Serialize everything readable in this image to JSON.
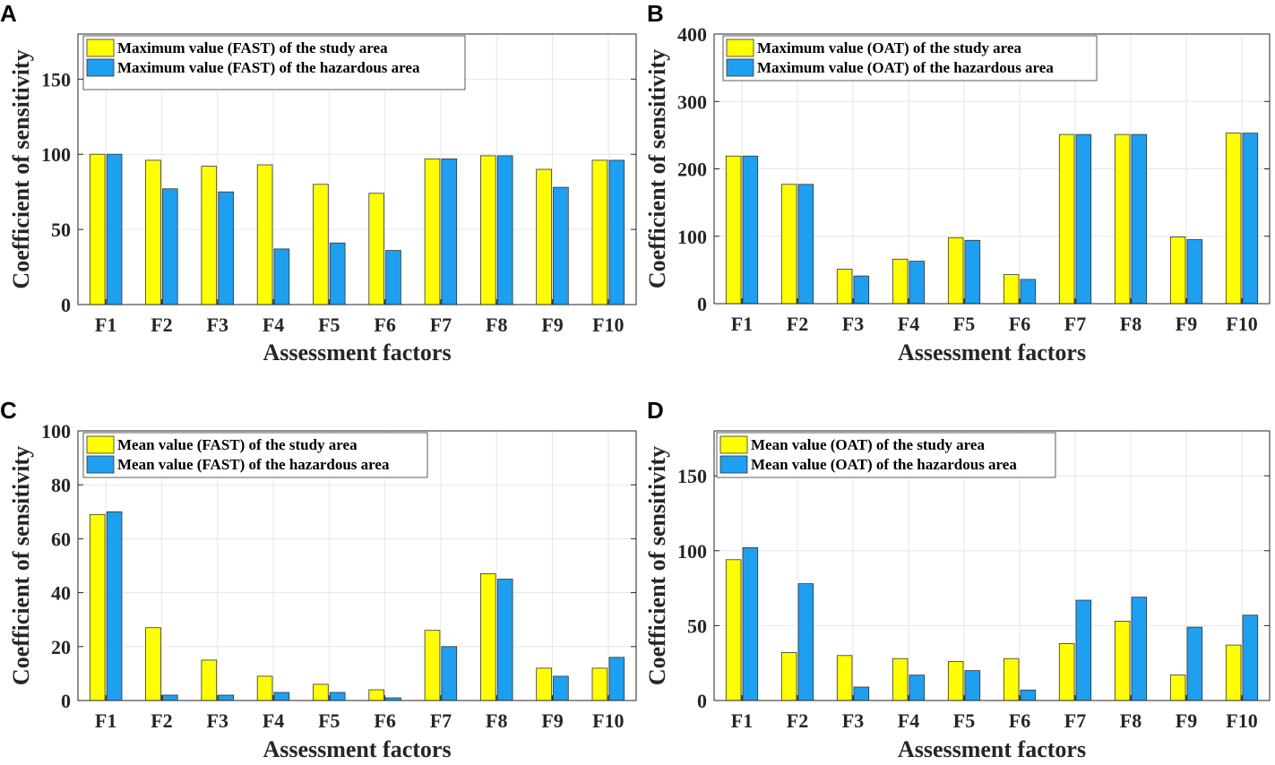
{
  "colors": {
    "study": "#ffff00",
    "hazard": "#1e9fef"
  },
  "chart_data": [
    {
      "panel": "A",
      "type": "bar",
      "categories": [
        "F1",
        "F2",
        "F3",
        "F4",
        "F5",
        "F6",
        "F7",
        "F8",
        "F9",
        "F10"
      ],
      "xlabel": "Assessment factors",
      "ylabel": "Coefficient of sensitivity",
      "ylim": [
        0,
        180
      ],
      "yticks": [
        0,
        50,
        100,
        150
      ],
      "grid": true,
      "legend_position": "top-left",
      "series": [
        {
          "name": "Maximum value (FAST) of the study area",
          "values": [
            100,
            96,
            92,
            93,
            80,
            74,
            97,
            99,
            90,
            96
          ]
        },
        {
          "name": "Maximum value (FAST) of the hazardous area",
          "values": [
            100,
            77,
            75,
            37,
            41,
            36,
            97,
            99,
            78,
            96
          ]
        }
      ]
    },
    {
      "panel": "B",
      "type": "bar",
      "categories": [
        "F1",
        "F2",
        "F3",
        "F4",
        "F5",
        "F6",
        "F7",
        "F8",
        "F9",
        "F10"
      ],
      "xlabel": "Assessment factors",
      "ylabel": "Coefficient of sensitivity",
      "ylim": [
        0,
        400
      ],
      "yticks": [
        0,
        100,
        200,
        300,
        400
      ],
      "grid": true,
      "legend_position": "top-left",
      "series": [
        {
          "name": "Maximum value (OAT) of the study area",
          "values": [
            219,
            177,
            51,
            66,
            98,
            43,
            251,
            251,
            99,
            253
          ]
        },
        {
          "name": "Maximum value (OAT) of the hazardous area",
          "values": [
            219,
            177,
            41,
            63,
            94,
            36,
            251,
            251,
            95,
            253
          ]
        }
      ]
    },
    {
      "panel": "C",
      "type": "bar",
      "categories": [
        "F1",
        "F2",
        "F3",
        "F4",
        "F5",
        "F6",
        "F7",
        "F8",
        "F9",
        "F10"
      ],
      "xlabel": "Assessment factors",
      "ylabel": "Coefficient of sensitivity",
      "ylim": [
        0,
        100
      ],
      "yticks": [
        0,
        20,
        40,
        60,
        80,
        100
      ],
      "grid": true,
      "legend_position": "top-left",
      "series": [
        {
          "name": "Mean value (FAST) of the study area",
          "values": [
            69,
            27,
            15,
            9,
            6,
            4,
            26,
            47,
            12,
            12
          ]
        },
        {
          "name": "Mean value (FAST) of the hazardous area",
          "values": [
            70,
            2,
            2,
            3,
            3,
            1,
            20,
            45,
            9,
            16
          ]
        }
      ]
    },
    {
      "panel": "D",
      "type": "bar",
      "categories": [
        "F1",
        "F2",
        "F3",
        "F4",
        "F5",
        "F6",
        "F7",
        "F8",
        "F9",
        "F10"
      ],
      "xlabel": "Assessment factors",
      "ylabel": "Coefficient of sensitivity",
      "ylim": [
        0,
        180
      ],
      "yticks": [
        0,
        50,
        100,
        150
      ],
      "grid": true,
      "legend_position": "top-left",
      "series": [
        {
          "name": "Mean value (OAT) of the study area",
          "values": [
            94,
            32,
            30,
            28,
            26,
            28,
            38,
            53,
            17,
            37
          ]
        },
        {
          "name": "Mean value (OAT) of the hazardous area",
          "values": [
            102,
            78,
            9,
            17,
            20,
            7,
            67,
            69,
            49,
            57
          ]
        }
      ]
    }
  ]
}
